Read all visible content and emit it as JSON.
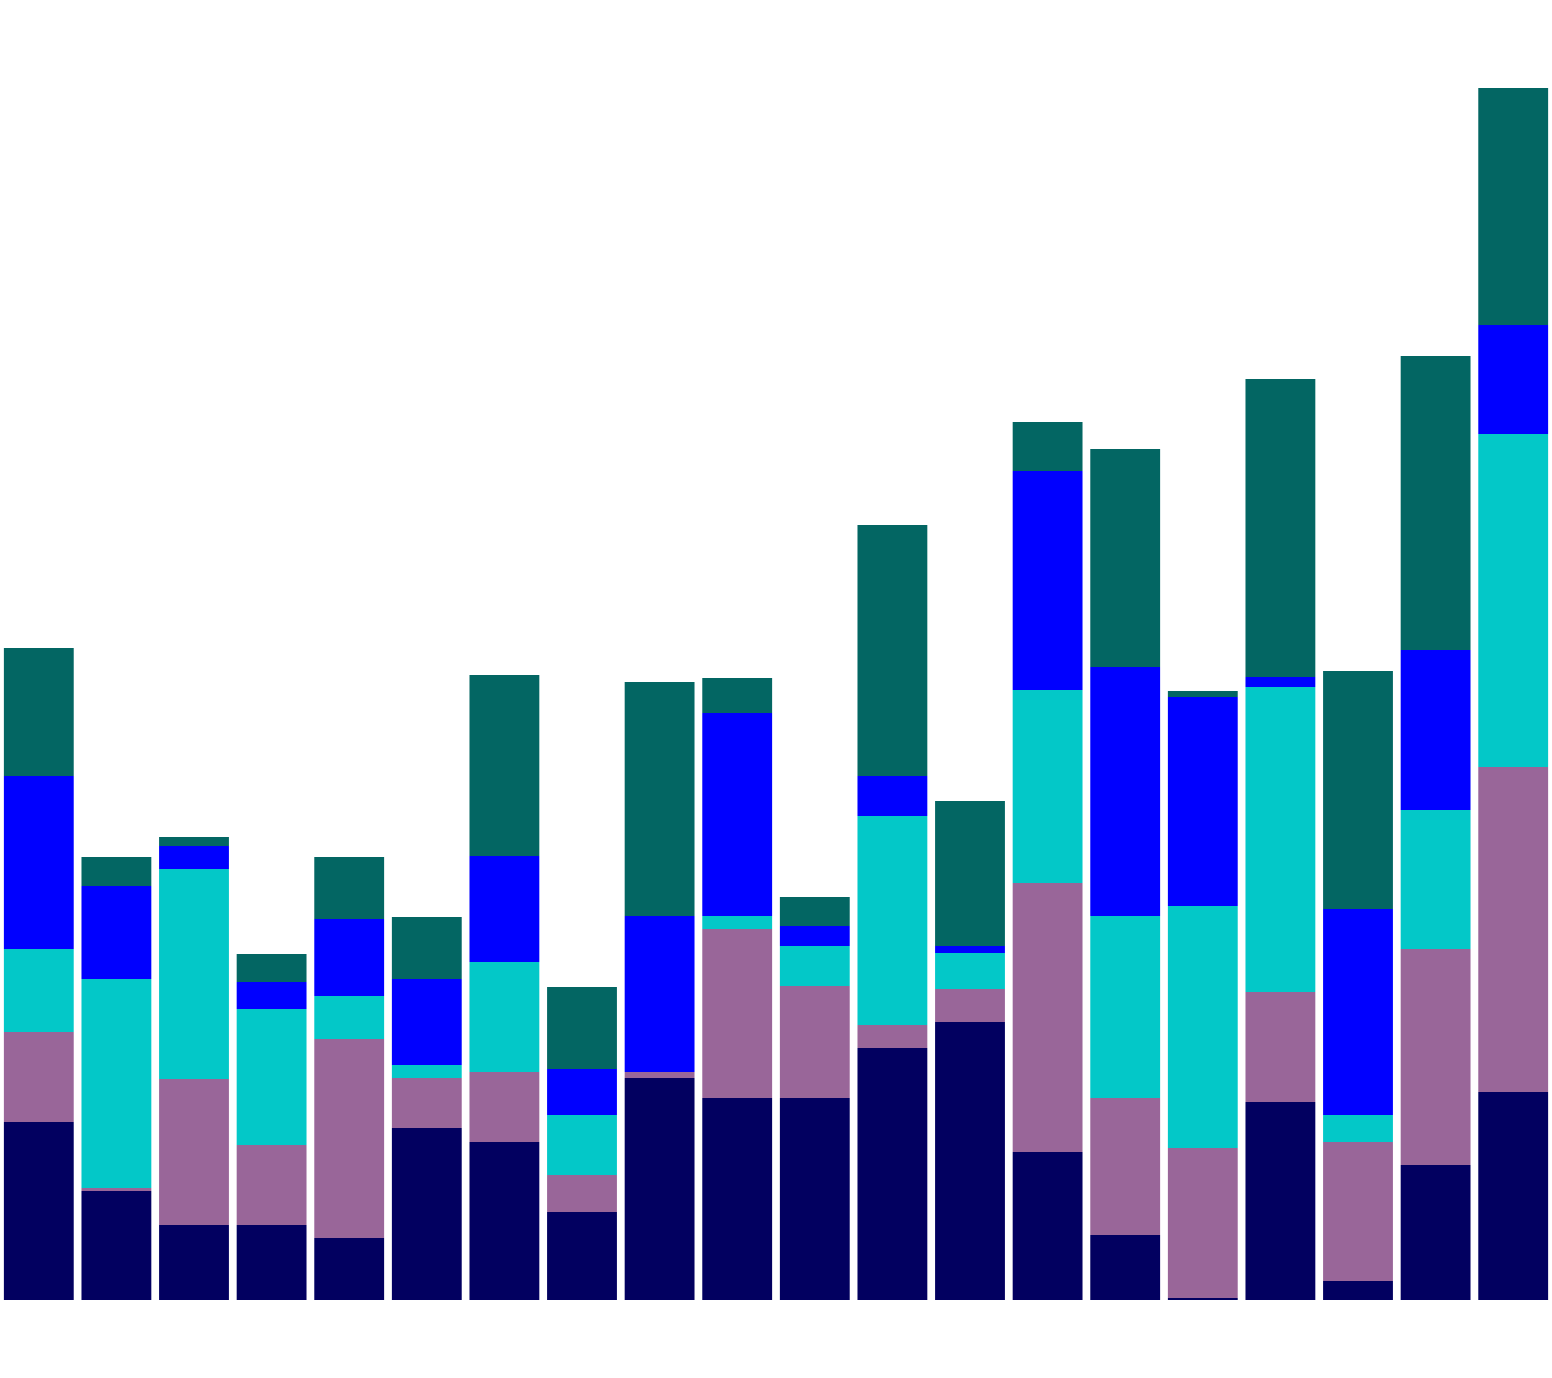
{
  "chart_data": {
    "type": "stacked_bar",
    "categories": [
      null,
      null,
      null,
      null,
      null,
      null,
      null,
      null,
      null,
      null,
      null,
      null,
      null,
      null,
      null,
      null,
      null,
      null,
      null,
      null
    ],
    "series": [
      {
        "color": "#020060",
        "values": [
          17.8,
          10.9,
          7.5,
          7.5,
          6.2,
          17.2,
          15.8,
          8.8,
          22.2,
          20.2,
          20.2,
          25.2,
          27.8,
          14.8,
          6.5,
          0.2,
          19.8,
          1.9,
          13.5,
          20.8
        ]
      },
      {
        "color": "#996699",
        "values": [
          9.0,
          0.3,
          14.6,
          8.0,
          19.9,
          5.0,
          7.0,
          3.7,
          0.6,
          16.9,
          11.2,
          2.3,
          3.3,
          26.9,
          13.7,
          15.0,
          11.0,
          13.9,
          21.6,
          32.5
        ]
      },
      {
        "color": "#03c8c8",
        "values": [
          8.3,
          20.9,
          21.0,
          13.6,
          4.3,
          1.3,
          11.0,
          6.0,
          0,
          1.3,
          4.0,
          20.9,
          3.6,
          19.3,
          18.2,
          24.2,
          30.5,
          2.7,
          13.9,
          33.3
        ]
      },
      {
        "color": "#0000ff",
        "values": [
          17.3,
          9.3,
          2.3,
          2.7,
          7.7,
          8.6,
          10.6,
          4.6,
          15.6,
          20.3,
          2.0,
          4.0,
          0.7,
          21.9,
          24.9,
          20.9,
          1.0,
          20.6,
          16.0,
          10.9
        ]
      },
      {
        "color": "#036663",
        "values": [
          12.8,
          2.9,
          0.9,
          2.8,
          6.2,
          6.2,
          18.1,
          8.2,
          23.4,
          3.5,
          2.9,
          25.1,
          14.5,
          4.9,
          21.8,
          0.6,
          29.8,
          23.8,
          29.4,
          23.7
        ]
      }
    ],
    "ylim": [
      0,
      130
    ]
  }
}
